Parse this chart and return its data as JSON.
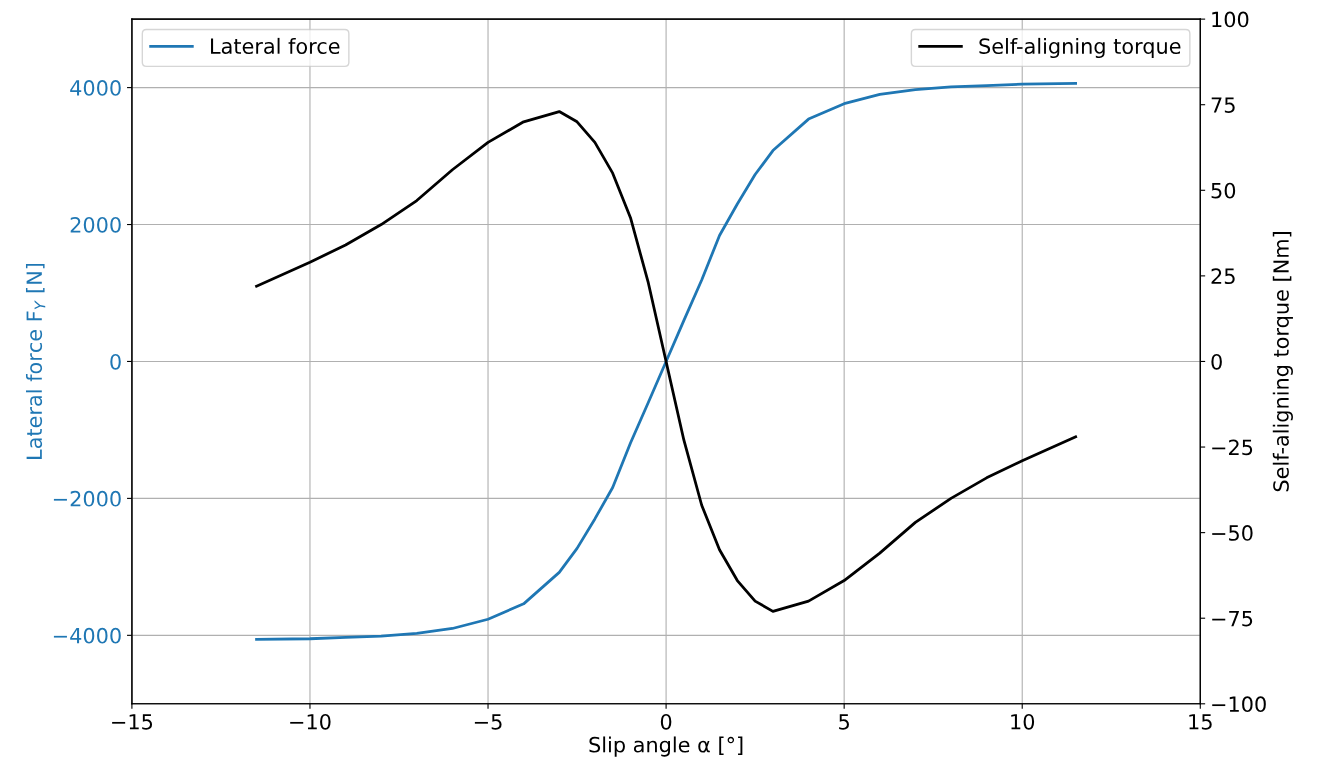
{
  "chart_data": {
    "type": "line",
    "xlabel": "Slip angle α [°]",
    "ylabel": "Lateral force F$_{Y}$ [N]",
    "y2label": "Self-aligning torque [Nm]",
    "xlim": [
      -15,
      15
    ],
    "xticks": [
      {
        "value": -15,
        "label": "−15"
      },
      {
        "value": -10,
        "label": "−10"
      },
      {
        "value": -5,
        "label": "−5"
      },
      0,
      5,
      10,
      15
    ],
    "ylim": [
      -5000,
      5000
    ],
    "yticks": [
      {
        "value": -4000,
        "label": "−4000"
      },
      {
        "value": -2000,
        "label": "−2000"
      },
      0,
      2000,
      4000
    ],
    "y2lim": [
      -100,
      100
    ],
    "y2ticks": [
      {
        "value": -100,
        "label": "−100"
      },
      {
        "value": -75,
        "label": "−75"
      },
      {
        "value": -50,
        "label": "−50"
      },
      {
        "value": -25,
        "label": "−25"
      },
      0,
      25,
      50,
      75,
      100
    ],
    "grid": true,
    "legend": "top",
    "x": [
      -11.5,
      -10,
      -9,
      -8,
      -7,
      -6,
      -5,
      -4,
      -3,
      -2.5,
      -2,
      -1.5,
      -1,
      -0.5,
      0,
      0.5,
      1,
      1.5,
      2,
      2.5,
      3,
      4,
      5,
      6,
      7,
      8,
      9,
      10,
      11.5
    ],
    "series": [
      {
        "name": "Lateral force",
        "color": "#1f77b4",
        "values": [
          -4060,
          -4050,
          -4030,
          -4010,
          -3970,
          -3900,
          -3765,
          -3540,
          -3080,
          -2730,
          -2300,
          -1840,
          -1190,
          -600,
          0,
          600,
          1190,
          1840,
          2300,
          2730,
          3080,
          3540,
          3765,
          3900,
          3970,
          4010,
          4030,
          4050,
          4060
        ]
      },
      {
        "name": "Self-aligning torque",
        "color": "#000000",
        "axis": "y2",
        "values": [
          22,
          29,
          34,
          40,
          47,
          56,
          64,
          70,
          73,
          70,
          64,
          55,
          42,
          23,
          0,
          -23,
          -42,
          -55,
          -64,
          -70,
          -73,
          -70,
          -64,
          -56,
          -47,
          -40,
          -34,
          -29,
          -22
        ]
      }
    ]
  }
}
